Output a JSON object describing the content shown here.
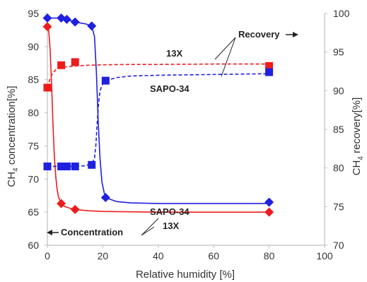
{
  "chart_data": {
    "type": "line",
    "xlabel": "Relative humidity   [%]",
    "ylabel_left": {
      "base": "CH",
      "sub": "4",
      "rest": " concentration[%]"
    },
    "ylabel_right": {
      "base": "CH",
      "sub": "4",
      "rest": " recovery[%]"
    },
    "xlim": [
      0,
      100
    ],
    "ylim_left": [
      60,
      95
    ],
    "ylim_right": [
      70,
      100
    ],
    "x_ticks": [
      "0",
      "20",
      "40",
      "60",
      "80",
      "100"
    ],
    "y_ticks_left": [
      "60",
      "65",
      "70",
      "75",
      "80",
      "85",
      "90",
      "95"
    ],
    "y_ticks_right": [
      "70",
      "75",
      "80",
      "85",
      "90",
      "95",
      "100"
    ],
    "grid": false,
    "colors": {
      "13X": "#ee1c1c",
      "SAPO-34": "#2020e0",
      "axis": "#bfbfbf"
    },
    "series": [
      {
        "name": "13X",
        "quantity": "concentration",
        "axis": "left",
        "marker": "diamond",
        "line": "solid",
        "color": "#ee1c1c",
        "x": [
          0,
          5,
          10,
          80
        ],
        "y": [
          93.0,
          66.3,
          65.4,
          65.0
        ],
        "curve_x": [
          0,
          0.5,
          1,
          1.5,
          2,
          2.5,
          3,
          3.5,
          4,
          5,
          6,
          8,
          10,
          15,
          20,
          40,
          60,
          80
        ],
        "curve_y": [
          93.0,
          92.4,
          89.5,
          84.5,
          78.5,
          73.5,
          70.5,
          68.5,
          67.3,
          66.3,
          65.9,
          65.6,
          65.4,
          65.2,
          65.1,
          65.0,
          65.0,
          65.0
        ]
      },
      {
        "name": "SAPO-34",
        "quantity": "concentration",
        "axis": "left",
        "marker": "diamond",
        "line": "solid",
        "color": "#2020e0",
        "x": [
          0,
          5,
          7,
          10,
          16,
          21,
          80
        ],
        "y": [
          94.3,
          94.3,
          94.1,
          93.7,
          93.1,
          67.2,
          66.5
        ],
        "curve_x": [
          0,
          5,
          7,
          10,
          14,
          16,
          17,
          17.7,
          18.3,
          19,
          19.7,
          20.5,
          21.5,
          25,
          30,
          40,
          60,
          80
        ],
        "curve_y": [
          94.3,
          94.3,
          94.1,
          93.7,
          93.4,
          93.1,
          91.5,
          86.0,
          79.0,
          73.0,
          69.5,
          67.9,
          67.1,
          66.6,
          66.4,
          66.3,
          66.3,
          66.3
        ]
      },
      {
        "name": "13X",
        "quantity": "recovery",
        "axis": "right",
        "marker": "square",
        "line": "dashed",
        "color": "#ee1c1c",
        "x": [
          0,
          5,
          10,
          80
        ],
        "y": [
          90.4,
          93.3,
          93.7,
          93.2
        ],
        "curve_x": [
          0,
          0.5,
          1,
          1.5,
          2,
          3,
          4,
          5,
          7,
          10,
          15,
          20,
          30,
          40,
          60,
          80
        ],
        "curve_y": [
          90.4,
          91.0,
          91.6,
          92.0,
          92.3,
          92.7,
          92.9,
          93.0,
          93.1,
          93.2,
          93.3,
          93.35,
          93.4,
          93.4,
          93.45,
          93.45
        ]
      },
      {
        "name": "SAPO-34",
        "quantity": "recovery",
        "axis": "right",
        "marker": "square",
        "line": "dashed",
        "color": "#2020e0",
        "x": [
          0,
          5,
          7,
          10,
          16,
          21,
          80
        ],
        "y": [
          80.2,
          80.2,
          80.2,
          80.2,
          80.4,
          91.3,
          92.4
        ],
        "curve_x": [
          0,
          5,
          10,
          14,
          16,
          17,
          17.5,
          18,
          18.5,
          19,
          20,
          21,
          25,
          30,
          40,
          60,
          80
        ],
        "curve_y": [
          80.2,
          80.2,
          80.2,
          80.3,
          80.6,
          81.2,
          83.0,
          86.0,
          88.5,
          90.0,
          90.9,
          91.3,
          91.7,
          91.9,
          92.0,
          92.1,
          92.2
        ]
      }
    ],
    "annotations": [
      {
        "text": "Recovery",
        "arrow": "right"
      },
      {
        "text": "13X"
      },
      {
        "text": "SAPO-34"
      },
      {
        "text": "SAPO-34"
      },
      {
        "text": "Concentration",
        "arrow": "left"
      },
      {
        "text": "13X"
      }
    ]
  }
}
